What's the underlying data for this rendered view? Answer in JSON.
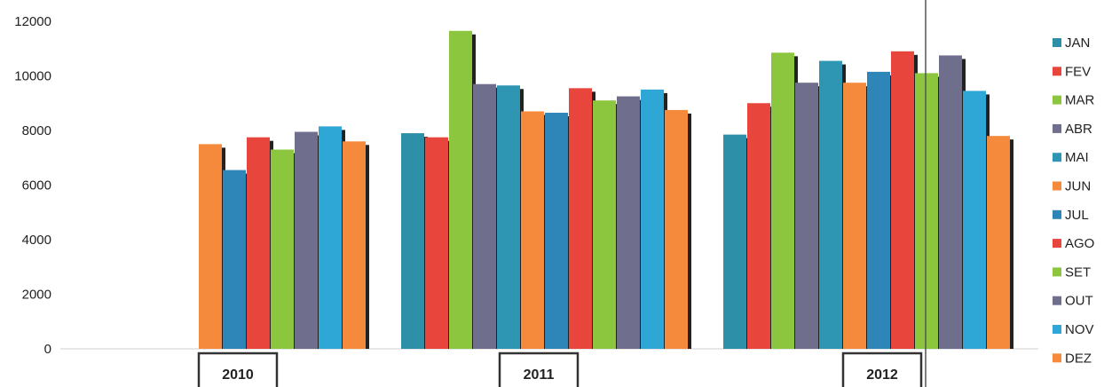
{
  "chart_data": {
    "type": "bar",
    "categories": [
      "2010",
      "2011",
      "2012"
    ],
    "ylim": [
      0,
      12000
    ],
    "yticks": [
      0,
      2000,
      4000,
      6000,
      8000,
      10000,
      12000
    ],
    "grid": false,
    "legend_position": "right",
    "series": [
      {
        "name": "JAN",
        "color": "#2E8FA8",
        "values": [
          null,
          7900,
          7850
        ]
      },
      {
        "name": "FEV",
        "color": "#E8453C",
        "values": [
          null,
          7750,
          9000
        ]
      },
      {
        "name": "MAR",
        "color": "#8CC63E",
        "values": [
          null,
          11650,
          10850
        ]
      },
      {
        "name": "ABR",
        "color": "#6F6E8C",
        "values": [
          null,
          9700,
          9750
        ]
      },
      {
        "name": "MAI",
        "color": "#2E95B3",
        "values": [
          null,
          9650,
          10550
        ]
      },
      {
        "name": "JUN",
        "color": "#F58A3C",
        "values": [
          7500,
          8700,
          9750
        ]
      },
      {
        "name": "JUL",
        "color": "#2E86B8",
        "values": [
          6550,
          8650,
          10150
        ]
      },
      {
        "name": "AGO",
        "color": "#E8453C",
        "values": [
          7750,
          9550,
          10900
        ]
      },
      {
        "name": "SET",
        "color": "#8CC63E",
        "values": [
          7300,
          9100,
          10100
        ]
      },
      {
        "name": "OUT",
        "color": "#6F6E8C",
        "values": [
          7950,
          9250,
          10750
        ]
      },
      {
        "name": "NOV",
        "color": "#2EA6D6",
        "values": [
          8150,
          9500,
          9450
        ]
      },
      {
        "name": "DEZ",
        "color": "#F58A3C",
        "values": [
          7600,
          8750,
          7800
        ]
      }
    ]
  }
}
